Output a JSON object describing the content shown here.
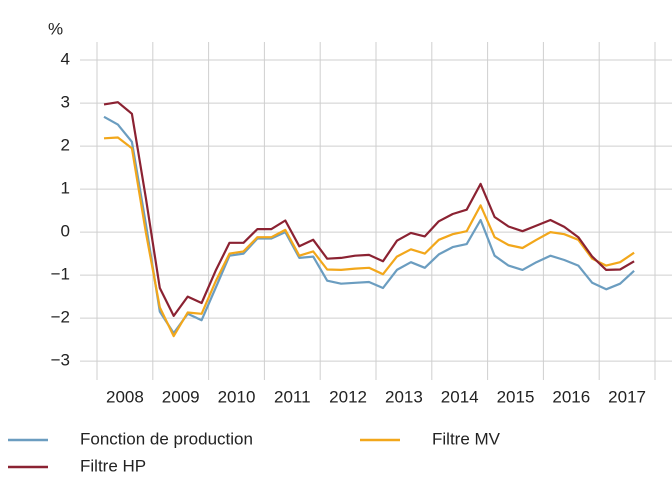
{
  "chart_data": {
    "type": "line",
    "y_label": "%",
    "x": [
      2008.125,
      2008.375,
      2008.625,
      2008.875,
      2009.125,
      2009.375,
      2009.625,
      2009.875,
      2010.125,
      2010.375,
      2010.625,
      2010.875,
      2011.125,
      2011.375,
      2011.625,
      2011.875,
      2012.125,
      2012.375,
      2012.625,
      2012.875,
      2013.125,
      2013.375,
      2013.625,
      2013.875,
      2014.125,
      2014.375,
      2014.625,
      2014.875,
      2015.125,
      2015.375,
      2015.625,
      2015.875,
      2016.125,
      2016.375,
      2016.625,
      2016.875,
      2017.125,
      2017.375,
      2017.625
    ],
    "series": [
      {
        "name": "Fonction de production",
        "color": "#6b9dc0",
        "values": [
          2.68,
          2.5,
          2.1,
          0.2,
          -1.85,
          -2.35,
          -1.9,
          -2.05,
          -1.3,
          -0.55,
          -0.5,
          -0.15,
          -0.15,
          0.0,
          -0.6,
          -0.57,
          -1.13,
          -1.2,
          -1.18,
          -1.16,
          -1.3,
          -0.88,
          -0.7,
          -0.83,
          -0.52,
          -0.35,
          -0.28,
          0.28,
          -0.55,
          -0.78,
          -0.88,
          -0.7,
          -0.55,
          -0.65,
          -0.78,
          -1.18,
          -1.33,
          -1.2,
          -0.9
        ]
      },
      {
        "name": "Filtre MV",
        "color": "#f2a71b",
        "values": [
          2.18,
          2.2,
          1.95,
          0.0,
          -1.75,
          -2.42,
          -1.87,
          -1.9,
          -1.15,
          -0.5,
          -0.45,
          -0.12,
          -0.12,
          0.05,
          -0.55,
          -0.45,
          -0.87,
          -0.88,
          -0.85,
          -0.83,
          -0.98,
          -0.57,
          -0.4,
          -0.5,
          -0.18,
          -0.05,
          0.02,
          0.62,
          -0.12,
          -0.3,
          -0.37,
          -0.18,
          0.0,
          -0.05,
          -0.18,
          -0.62,
          -0.78,
          -0.7,
          -0.48
        ]
      },
      {
        "name": "Filtre HP",
        "color": "#8b2232",
        "values": [
          2.97,
          3.02,
          2.75,
          0.8,
          -1.3,
          -1.95,
          -1.5,
          -1.65,
          -0.9,
          -0.25,
          -0.25,
          0.07,
          0.07,
          0.27,
          -0.33,
          -0.18,
          -0.62,
          -0.6,
          -0.55,
          -0.53,
          -0.68,
          -0.2,
          -0.02,
          -0.1,
          0.25,
          0.42,
          0.52,
          1.12,
          0.35,
          0.13,
          0.02,
          0.15,
          0.28,
          0.12,
          -0.12,
          -0.57,
          -0.88,
          -0.87,
          -0.68
        ]
      }
    ],
    "xlim": [
      2008,
      2018
    ],
    "xticks": [
      {
        "value": 2008,
        "label": "2008"
      },
      {
        "value": 2009,
        "label": "2009"
      },
      {
        "value": 2010,
        "label": "2010"
      },
      {
        "value": 2011,
        "label": "2011"
      },
      {
        "value": 2012,
        "label": "2012"
      },
      {
        "value": 2013,
        "label": "2013"
      },
      {
        "value": 2014,
        "label": "2014"
      },
      {
        "value": 2015,
        "label": "2015"
      },
      {
        "value": 2016,
        "label": "2016"
      },
      {
        "value": 2017,
        "label": "2017"
      }
    ],
    "ylim": [
      -3.44,
      4.42
    ],
    "yticks": [
      4,
      3,
      2,
      1,
      0,
      {
        "value": -1,
        "label": "−1"
      },
      {
        "value": -2,
        "label": "−2"
      },
      {
        "value": -3,
        "label": "−3"
      }
    ],
    "grid": true
  }
}
